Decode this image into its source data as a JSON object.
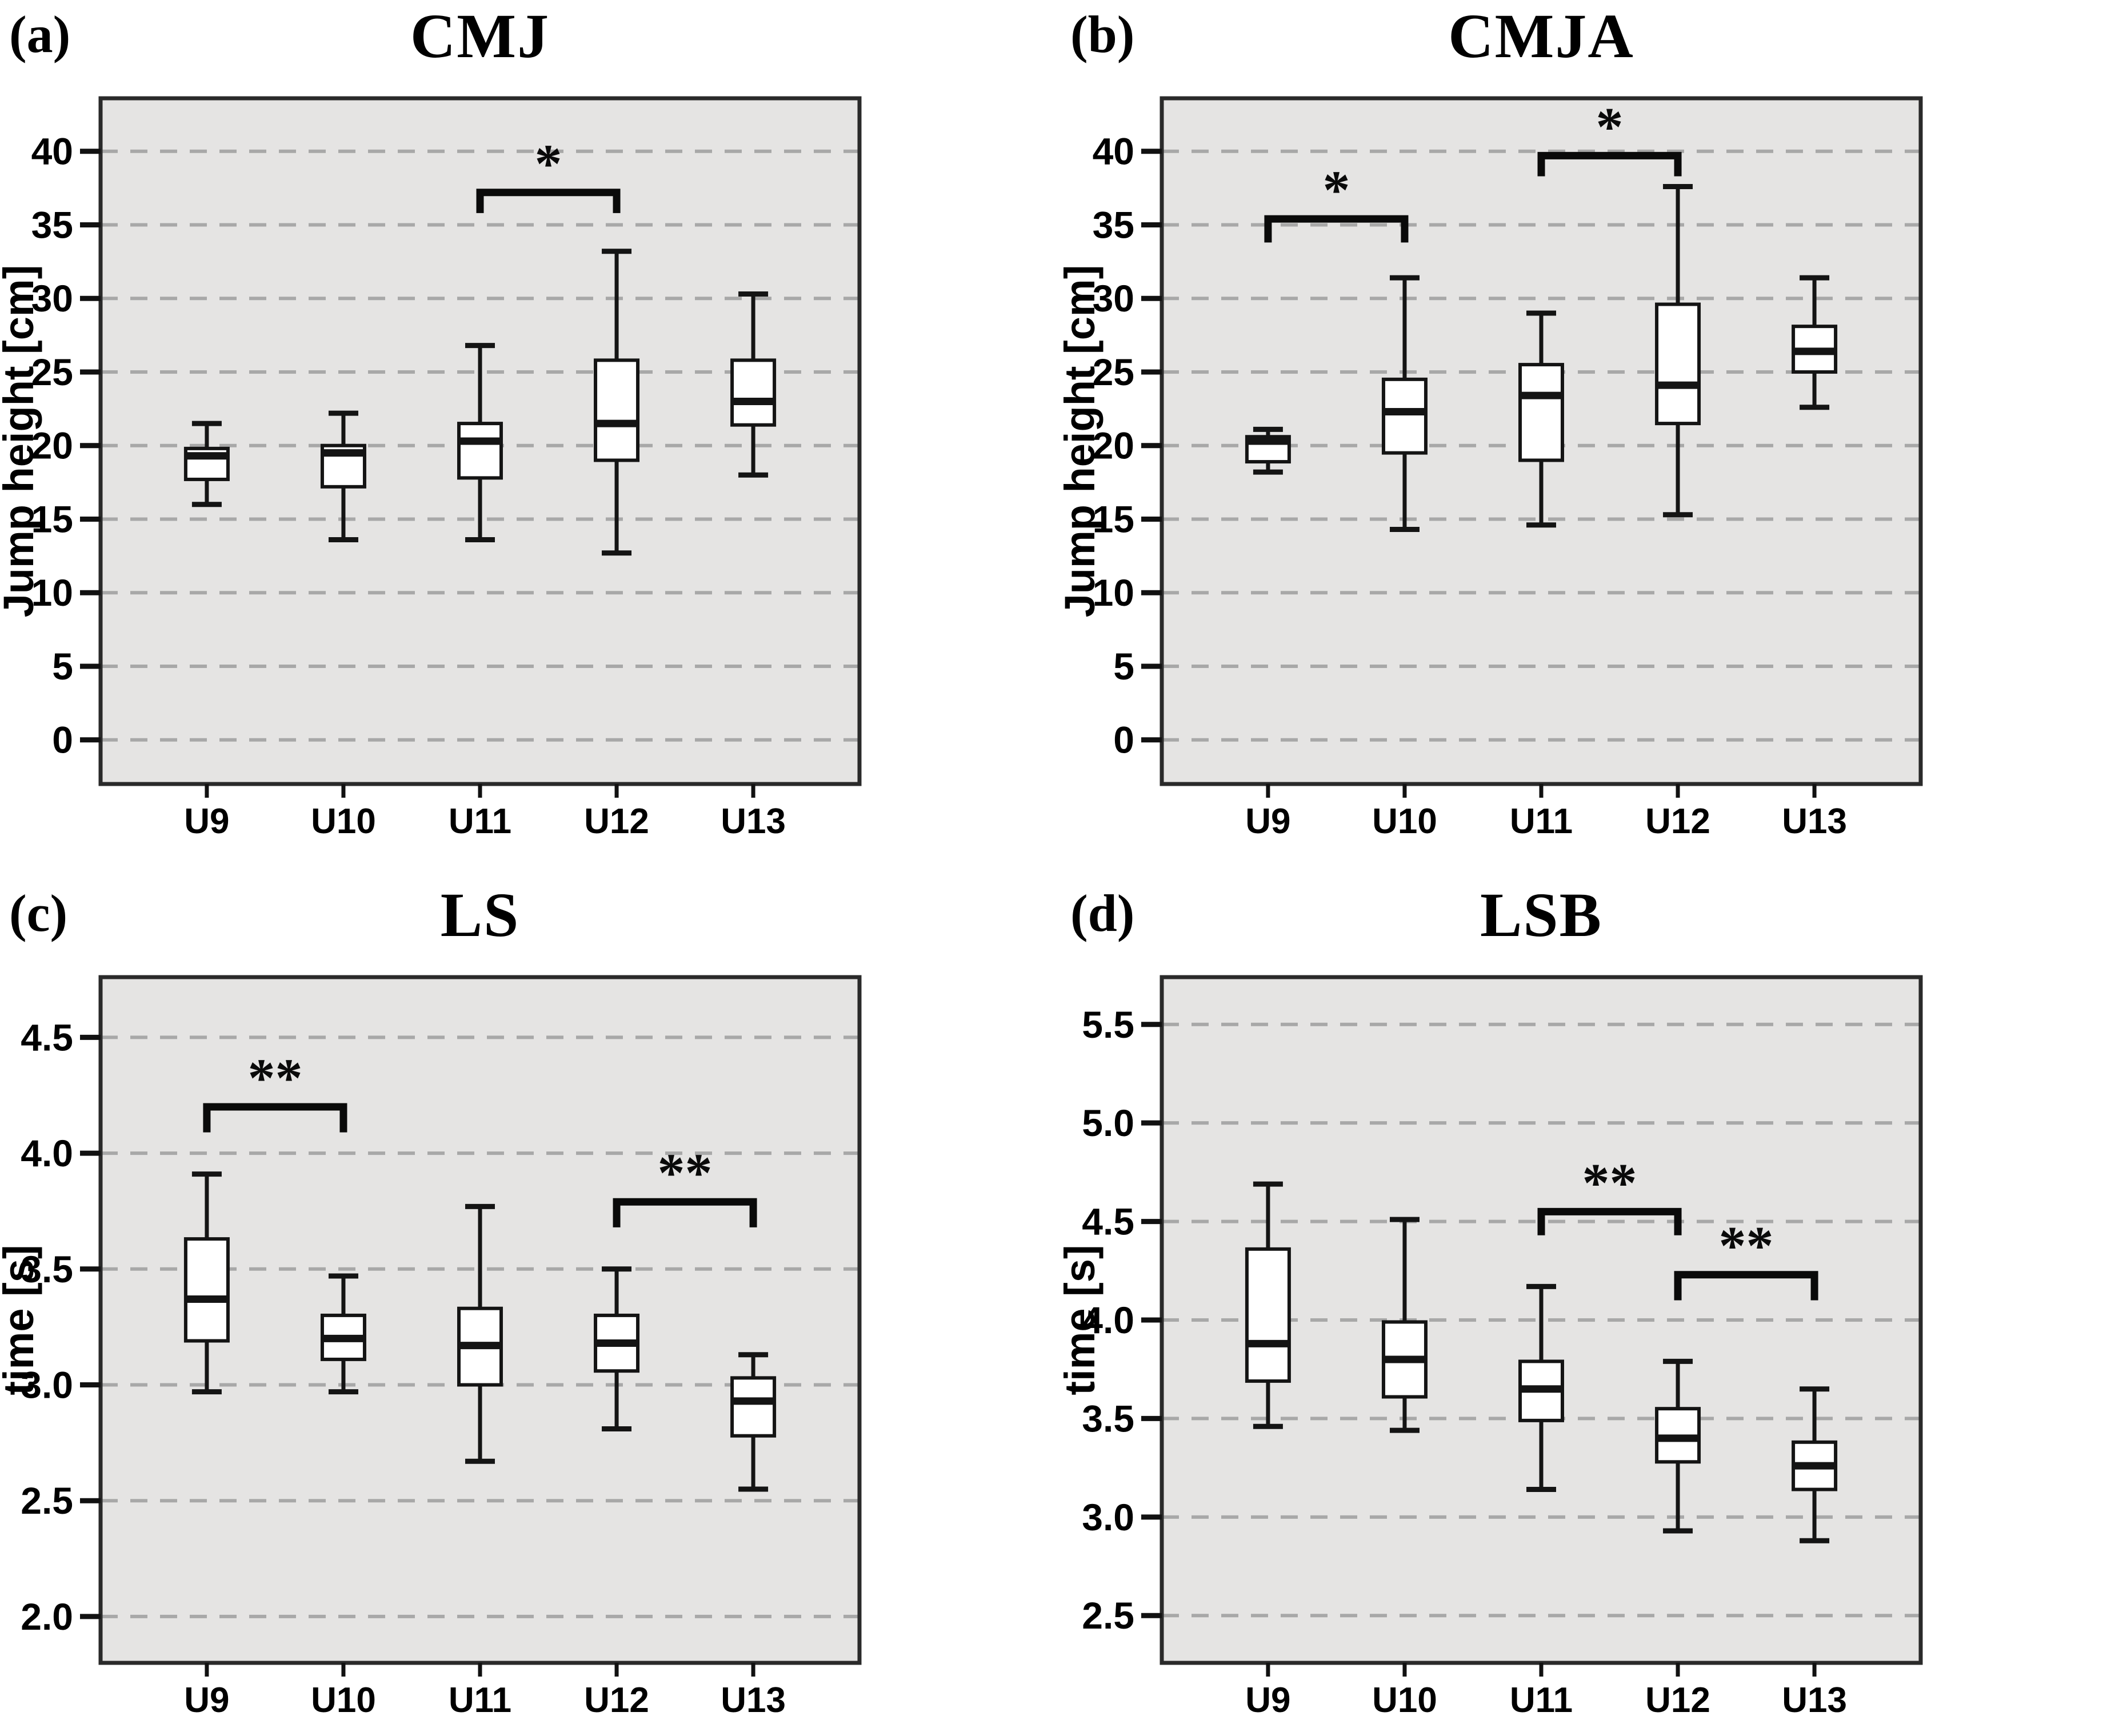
{
  "colors": {
    "plot_background": "#e5e4e3",
    "gridline": "#a8a8a8",
    "frame": "#2a2a2a",
    "box_fill": "#ffffff",
    "line": "#141414",
    "text": "#000000"
  },
  "chart_data": [
    {
      "type": "boxplot",
      "panel_label": "(a)",
      "title": "CMJ",
      "ylabel": "Jump height [cm]",
      "xlabel": "",
      "legend_position": "none",
      "grid": true,
      "categories": [
        "U9",
        "U10",
        "U11",
        "U12",
        "U13"
      ],
      "yticks": {
        "values": [
          40,
          35,
          30,
          25,
          20,
          15,
          10,
          5,
          0
        ],
        "labels": [
          "40",
          "35",
          "30",
          "25",
          "20",
          "15",
          "10",
          "5",
          "0"
        ]
      },
      "ylim_drawn": [
        -3.0,
        43.6
      ],
      "boxes": [
        {
          "category": "U9",
          "whisker_low": 16.0,
          "q1": 17.7,
          "median": 19.3,
          "q3": 19.8,
          "whisker_high": 21.5
        },
        {
          "category": "U10",
          "whisker_low": 13.6,
          "q1": 17.2,
          "median": 19.5,
          "q3": 20.0,
          "whisker_high": 22.2
        },
        {
          "category": "U11",
          "whisker_low": 13.6,
          "q1": 17.8,
          "median": 20.3,
          "q3": 21.5,
          "whisker_high": 26.8
        },
        {
          "category": "U12",
          "whisker_low": 12.7,
          "q1": 19.0,
          "median": 21.5,
          "q3": 25.8,
          "whisker_high": 33.2
        },
        {
          "category": "U13",
          "whisker_low": 18.0,
          "q1": 21.4,
          "median": 23.0,
          "q3": 25.8,
          "whisker_high": 30.3
        }
      ],
      "significance": [
        {
          "from": "U11",
          "to": "U12",
          "label": "*",
          "bar_y": 37.2,
          "end_y": 35.8
        }
      ]
    },
    {
      "type": "boxplot",
      "panel_label": "(b)",
      "title": "CMJA",
      "ylabel": "Jump height [cm]",
      "xlabel": "",
      "legend_position": "none",
      "grid": true,
      "categories": [
        "U9",
        "U10",
        "U11",
        "U12",
        "U13"
      ],
      "yticks": {
        "values": [
          40,
          35,
          30,
          25,
          20,
          15,
          10,
          5,
          0
        ],
        "labels": [
          "40",
          "35",
          "30",
          "25",
          "20",
          "15",
          "10",
          "5",
          "0"
        ]
      },
      "ylim_drawn": [
        -3.0,
        43.6
      ],
      "boxes": [
        {
          "category": "U9",
          "whisker_low": 18.2,
          "q1": 18.9,
          "median": 20.3,
          "q3": 20.6,
          "whisker_high": 21.1
        },
        {
          "category": "U10",
          "whisker_low": 14.3,
          "q1": 19.5,
          "median": 22.3,
          "q3": 24.5,
          "whisker_high": 31.4
        },
        {
          "category": "U11",
          "whisker_low": 14.6,
          "q1": 19.0,
          "median": 23.4,
          "q3": 25.5,
          "whisker_high": 29.0
        },
        {
          "category": "U12",
          "whisker_low": 15.3,
          "q1": 21.5,
          "median": 24.1,
          "q3": 29.6,
          "whisker_high": 37.6
        },
        {
          "category": "U13",
          "whisker_low": 22.6,
          "q1": 25.0,
          "median": 26.4,
          "q3": 28.1,
          "whisker_high": 31.4
        }
      ],
      "significance": [
        {
          "from": "U9",
          "to": "U10",
          "label": "*",
          "bar_y": 35.4,
          "end_y": 33.8
        },
        {
          "from": "U11",
          "to": "U12",
          "label": "*",
          "bar_y": 39.7,
          "end_y": 38.3
        }
      ]
    },
    {
      "type": "boxplot",
      "panel_label": "(c)",
      "title": "LS",
      "ylabel": "time [s]",
      "xlabel": "",
      "legend_position": "none",
      "grid": true,
      "categories": [
        "U9",
        "U10",
        "U11",
        "U12",
        "U13"
      ],
      "yticks": {
        "values": [
          4.5,
          4.0,
          3.5,
          3.0,
          2.5,
          2.0
        ],
        "labels": [
          "4.5",
          "4.0",
          "3.5",
          "3.0",
          "2.5",
          "2.0"
        ]
      },
      "ylim_drawn": [
        1.8,
        4.76
      ],
      "boxes": [
        {
          "category": "U9",
          "whisker_low": 2.97,
          "q1": 3.19,
          "median": 3.37,
          "q3": 3.63,
          "whisker_high": 3.91
        },
        {
          "category": "U10",
          "whisker_low": 2.97,
          "q1": 3.11,
          "median": 3.2,
          "q3": 3.3,
          "whisker_high": 3.47
        },
        {
          "category": "U11",
          "whisker_low": 2.67,
          "q1": 3.0,
          "median": 3.17,
          "q3": 3.33,
          "whisker_high": 3.77
        },
        {
          "category": "U12",
          "whisker_low": 2.81,
          "q1": 3.06,
          "median": 3.18,
          "q3": 3.3,
          "whisker_high": 3.5
        },
        {
          "category": "U13",
          "whisker_low": 2.55,
          "q1": 2.78,
          "median": 2.93,
          "q3": 3.03,
          "whisker_high": 3.13
        }
      ],
      "significance": [
        {
          "from": "U9",
          "to": "U10",
          "label": "**",
          "bar_y": 4.2,
          "end_y": 4.09
        },
        {
          "from": "U12",
          "to": "U13",
          "label": "**",
          "bar_y": 3.79,
          "end_y": 3.68
        }
      ]
    },
    {
      "type": "boxplot",
      "panel_label": "(d)",
      "title": "LSB",
      "ylabel": "time [s]",
      "xlabel": "",
      "legend_position": "none",
      "grid": true,
      "categories": [
        "U9",
        "U10",
        "U11",
        "U12",
        "U13"
      ],
      "yticks": {
        "values": [
          5.5,
          5.0,
          4.5,
          4.0,
          3.5,
          3.0,
          2.5
        ],
        "labels": [
          "5.5",
          "5.0",
          "4.5",
          "4.0",
          "3.5",
          "3.0",
          "2.5"
        ]
      },
      "ylim_drawn": [
        2.26,
        5.74
      ],
      "boxes": [
        {
          "category": "U9",
          "whisker_low": 3.46,
          "q1": 3.69,
          "median": 3.88,
          "q3": 4.36,
          "whisker_high": 4.69
        },
        {
          "category": "U10",
          "whisker_low": 3.44,
          "q1": 3.61,
          "median": 3.8,
          "q3": 3.99,
          "whisker_high": 4.51
        },
        {
          "category": "U11",
          "whisker_low": 3.14,
          "q1": 3.49,
          "median": 3.65,
          "q3": 3.79,
          "whisker_high": 4.17
        },
        {
          "category": "U12",
          "whisker_low": 2.93,
          "q1": 3.28,
          "median": 3.4,
          "q3": 3.55,
          "whisker_high": 3.79
        },
        {
          "category": "U13",
          "whisker_low": 2.88,
          "q1": 3.14,
          "median": 3.26,
          "q3": 3.38,
          "whisker_high": 3.65
        }
      ],
      "significance": [
        {
          "from": "U11",
          "to": "U12",
          "label": "**",
          "bar_y": 4.55,
          "end_y": 4.43
        },
        {
          "from": "U12",
          "to": "U13",
          "label": "**",
          "bar_y": 4.23,
          "end_y": 4.1
        }
      ]
    }
  ]
}
